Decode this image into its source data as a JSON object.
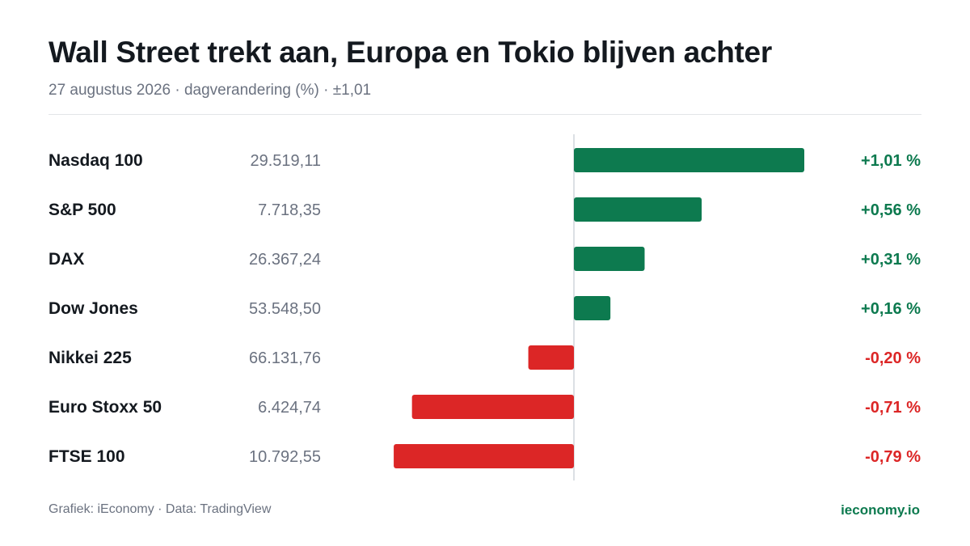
{
  "header": {
    "title": "Wall Street trekt aan, Europa en Tokio blijven achter",
    "subtitle": "27 augustus 2026 · dagverandering (%) · ±1,01"
  },
  "footer": {
    "credit": "Grafiek: iEconomy · Data: TradingView",
    "brand": "ieconomy.io"
  },
  "colors": {
    "positive": "#0d7a4f",
    "negative": "#dc2626",
    "axis": "#d1d5db"
  },
  "chart_data": {
    "type": "bar",
    "orientation": "horizontal",
    "scale_max_abs": 1.01,
    "rows": [
      {
        "name": "Nasdaq 100",
        "level": "29.519,11",
        "change": 1.01,
        "change_label": "+1,01 %"
      },
      {
        "name": "S&P 500",
        "level": "7.718,35",
        "change": 0.56,
        "change_label": "+0,56 %"
      },
      {
        "name": "DAX",
        "level": "26.367,24",
        "change": 0.31,
        "change_label": "+0,31 %"
      },
      {
        "name": "Dow Jones",
        "level": "53.548,50",
        "change": 0.16,
        "change_label": "+0,16 %"
      },
      {
        "name": "Nikkei 225",
        "level": "66.131,76",
        "change": -0.2,
        "change_label": "-0,20 %"
      },
      {
        "name": "Euro Stoxx 50",
        "level": "6.424,74",
        "change": -0.71,
        "change_label": "-0,71 %"
      },
      {
        "name": "FTSE 100",
        "level": "10.792,55",
        "change": -0.79,
        "change_label": "-0,79 %"
      }
    ]
  }
}
